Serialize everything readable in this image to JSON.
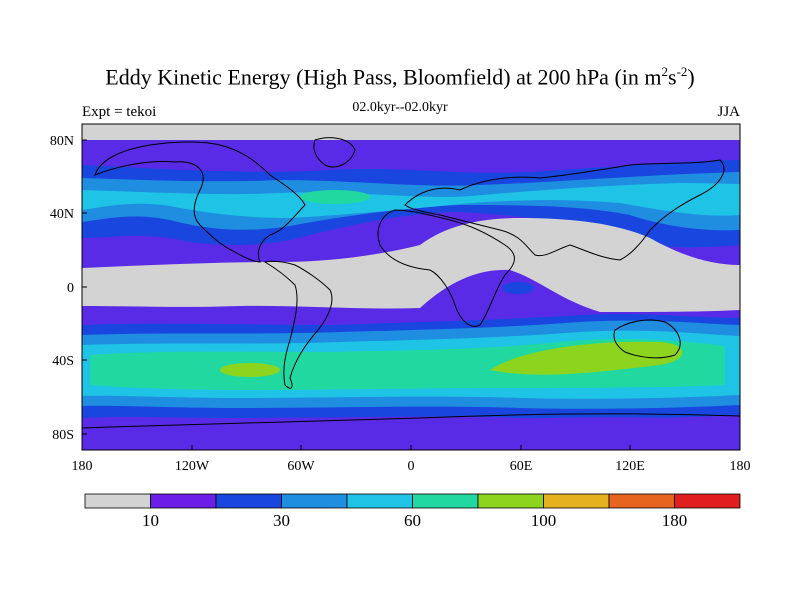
{
  "title_main": "Eddy Kinetic Energy (High Pass, Bloomfield) at 200 hPa (in m",
  "title_exp1": "2",
  "title_mid": "s",
  "title_exp2": "-2",
  "title_end": ")",
  "subtitle": "02.0kyr--02.0kyr",
  "left_label": "Expt = tekoi",
  "right_label": "JJA",
  "lat_ticks": [
    "80N",
    "40N",
    "0",
    "40S",
    "80S"
  ],
  "lon_ticks": [
    "180",
    "120W",
    "60W",
    "0",
    "60E",
    "120E",
    "180"
  ],
  "colorbar": {
    "colors": [
      "#d3d3d3",
      "#6a1ee6",
      "#1a46e0",
      "#1f8ee0",
      "#1fc3e6",
      "#21d9a0",
      "#8cd41e",
      "#e6b11e",
      "#e6641e",
      "#e01e1e"
    ],
    "labels": [
      "10",
      "30",
      "60",
      "100",
      "180"
    ]
  }
}
